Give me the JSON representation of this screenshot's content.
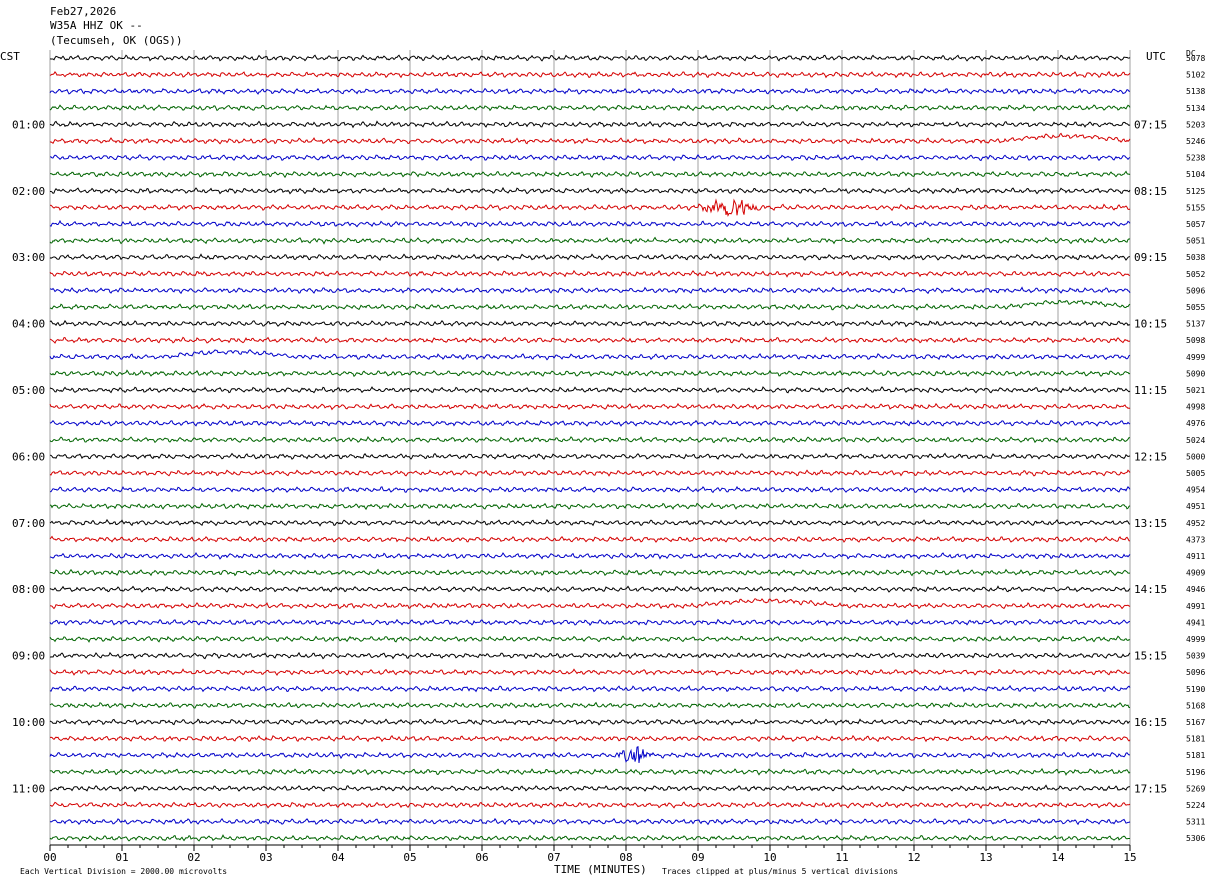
{
  "header": {
    "date": "Feb27,2026",
    "station": "W35A HHZ OK --",
    "location": "(Tecumseh, OK (OGS))"
  },
  "left_axis_label": "CST",
  "right_axis_label": "UTC",
  "dc_label": "DC",
  "chart_data": {
    "type": "line",
    "xlabel": "TIME (MINUTES)",
    "xlim": [
      0,
      15
    ],
    "x_ticks": [
      "00",
      "01",
      "02",
      "03",
      "04",
      "05",
      "06",
      "07",
      "08",
      "09",
      "10",
      "11",
      "12",
      "13",
      "14",
      "15"
    ],
    "rows": 48,
    "trace_colors": [
      "#000000",
      "#d40000",
      "#0000c8",
      "#006400"
    ],
    "left_time_labels": [
      "01:00",
      "02:00",
      "03:00",
      "04:00",
      "05:00",
      "06:00",
      "07:00",
      "08:00",
      "09:00",
      "10:00",
      "11:00"
    ],
    "right_time_labels": [
      "07:15",
      "08:15",
      "09:15",
      "10:15",
      "11:15",
      "12:15",
      "13:15",
      "14:15",
      "15:15",
      "16:15",
      "17:15"
    ],
    "dc_offsets": [
      "5078",
      "5102",
      "5138",
      "5134",
      "5203",
      "5246",
      "5238",
      "5104",
      "5125",
      "5155",
      "5057",
      "5051",
      "5038",
      "5052",
      "5096",
      "5055",
      "5137",
      "5098",
      "4999",
      "5090",
      "5021",
      "4998",
      "4976",
      "5024",
      "5000",
      "5005",
      "4954",
      "4951",
      "4952",
      "4373",
      "4911",
      "4909",
      "4946",
      "4991",
      "4941",
      "4999",
      "5039",
      "5096",
      "5190",
      "5168",
      "5167",
      "5181",
      "5181",
      "5196",
      "5269",
      "5224",
      "5311",
      "5306"
    ],
    "events": [
      {
        "row": 9,
        "start_min": 9.0,
        "end_min": 10.6,
        "type": "burst"
      },
      {
        "row": 42,
        "start_min": 7.9,
        "end_min": 8.8,
        "type": "burst"
      },
      {
        "row": 5,
        "start_min": 13.2,
        "end_min": 15.0,
        "type": "bump"
      },
      {
        "row": 15,
        "start_min": 13.3,
        "end_min": 15.0,
        "type": "bump"
      },
      {
        "row": 18,
        "start_min": 1.6,
        "end_min": 3.4,
        "type": "bump"
      },
      {
        "row": 33,
        "start_min": 8.9,
        "end_min": 11.0,
        "type": "bump"
      }
    ]
  },
  "footer": {
    "left": "Each Vertical Division = 2000.00 microvolts",
    "right": "Traces clipped at plus/minus 5 vertical divisions"
  }
}
